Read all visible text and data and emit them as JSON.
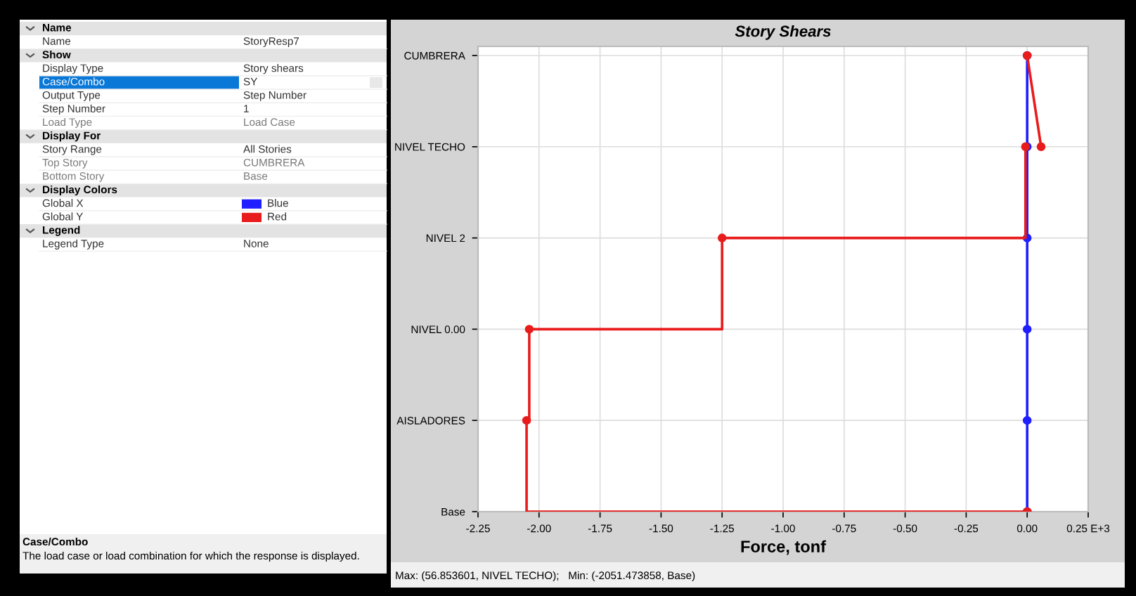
{
  "chart_data": {
    "type": "line",
    "orientation": "horizontal",
    "title": "Story Shears",
    "xlabel": "Force, tonf",
    "xlim": [
      -2.25,
      0.25
    ],
    "xticks": [
      {
        "value": -2.25,
        "label": "-2.25"
      },
      {
        "value": -2.0,
        "label": "-2.00"
      },
      {
        "value": -1.75,
        "label": "-1.75"
      },
      {
        "value": -1.5,
        "label": "-1.50"
      },
      {
        "value": -1.25,
        "label": "-1.25"
      },
      {
        "value": -1.0,
        "label": "-1.00"
      },
      {
        "value": -0.75,
        "label": "-0.75"
      },
      {
        "value": -0.5,
        "label": "-0.50"
      },
      {
        "value": -0.25,
        "label": "-0.25"
      },
      {
        "value": 0.0,
        "label": "0.00"
      },
      {
        "value": 0.25,
        "label": "0.25 E+3"
      }
    ],
    "categories": [
      "CUMBRERA",
      "NIVEL TECHO",
      "NIVEL 2",
      "NIVEL 0.00",
      "AISLADORES",
      "Base"
    ],
    "grid": true,
    "marker": "circle",
    "line_style": "solid",
    "series": [
      {
        "color": "#1f1fff",
        "values": [
          0.0,
          0.0,
          0.0,
          0.0,
          0.0,
          0.0
        ]
      },
      {
        "color": "#e81c1c",
        "values": [
          0.0,
          0.057,
          null,
          null,
          null,
          null
        ]
      },
      {
        "type": "step",
        "color": "#e81c1c",
        "values": [
          null,
          -0.007,
          -1.25,
          -2.04,
          -2.051,
          0.0
        ]
      }
    ],
    "annotations": [
      "Name",
      "Name",
      "StoryResp7",
      "Show",
      "Display Type",
      "Story shears",
      "Case/Combo",
      "SY",
      "Output Type",
      "Step Number",
      "Step Number",
      "1",
      "Load Type",
      "Load Case",
      "Display For",
      "Story Range",
      "All Stories",
      "Top Story",
      "CUMBRERA",
      "Bottom Story",
      "Base",
      "Display Colors",
      "Global X",
      "Blue",
      "Global Y",
      "Red",
      "Legend",
      "Legend Type",
      "None",
      "Case/Combo",
      "The load case or load combination for which the response is displayed.",
      "Max: (56.853601, NIVEL TECHO);   Min: (-2051.473858, Base)"
    ]
  }
}
